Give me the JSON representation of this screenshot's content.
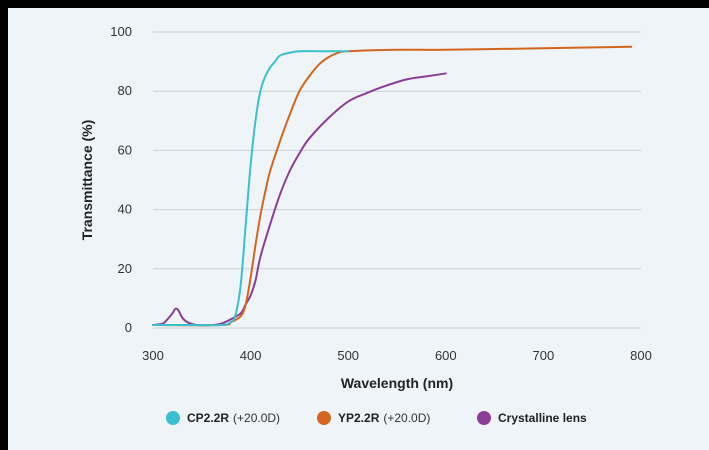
{
  "chart_data": {
    "type": "line",
    "title": "",
    "xlabel": "Wavelength (nm)",
    "ylabel": "Transmittance (%)",
    "xlim": [
      300,
      800
    ],
    "ylim": [
      0,
      100
    ],
    "x_ticks": [
      300,
      400,
      500,
      600,
      700,
      800
    ],
    "y_ticks": [
      0,
      20,
      40,
      60,
      80,
      100
    ],
    "grid": "horizontal",
    "legend_position": "bottom",
    "series": [
      {
        "name": "CP2.2R",
        "name_suffix": "(+20.0D)",
        "color": "#3bbfcf",
        "x": [
          300,
          340,
          370,
          380,
          385,
          390,
          395,
          400,
          405,
          410,
          415,
          420,
          425,
          430,
          440,
          450,
          470,
          500
        ],
        "y": [
          1,
          1,
          1,
          2,
          5,
          15,
          35,
          55,
          70,
          80,
          85,
          88,
          90,
          92,
          93,
          93.5,
          93.5,
          93.5
        ]
      },
      {
        "name": "YP2.2R",
        "name_suffix": "(+20.0D)",
        "color": "#d4651e",
        "x": [
          300,
          370,
          380,
          390,
          395,
          400,
          405,
          410,
          415,
          420,
          430,
          440,
          450,
          460,
          470,
          480,
          490,
          500,
          550,
          600,
          700,
          790
        ],
        "y": [
          1,
          1,
          2,
          4,
          8,
          17,
          28,
          38,
          46,
          53,
          63,
          72,
          80,
          85,
          89,
          91.5,
          93,
          93.5,
          94,
          94,
          94.5,
          95
        ]
      },
      {
        "name": "Crystalline lens",
        "name_suffix": "",
        "color": "#8c3d99",
        "x": [
          300,
          310,
          315,
          320,
          323,
          326,
          330,
          335,
          345,
          360,
          370,
          380,
          390,
          395,
          400,
          405,
          410,
          420,
          430,
          440,
          450,
          460,
          480,
          500,
          520,
          540,
          560,
          580,
          600
        ],
        "y": [
          1,
          1.5,
          3,
          5,
          6.5,
          6,
          3.5,
          2,
          1,
          1,
          1.5,
          3,
          5,
          8,
          11,
          16,
          24,
          35,
          45,
          53,
          59,
          64,
          71,
          76.5,
          79.5,
          82,
          84,
          85,
          86
        ]
      }
    ]
  }
}
